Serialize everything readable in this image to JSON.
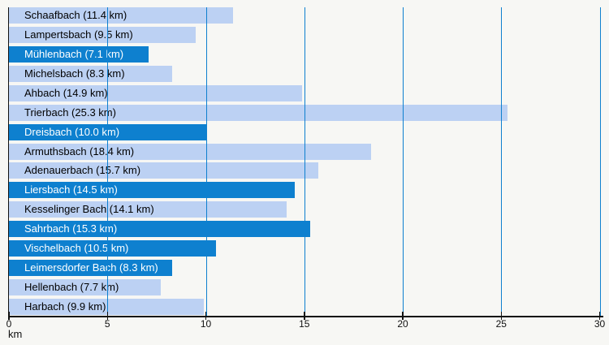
{
  "chart_data": {
    "type": "bar",
    "orientation": "horizontal",
    "title": "",
    "xlabel": "km",
    "xlim": [
      0,
      30
    ],
    "xticks": [
      0,
      5,
      10,
      15,
      20,
      25,
      30
    ],
    "grid": true,
    "legend": false,
    "bars": [
      {
        "name": "Schaafbach",
        "value": 11.4,
        "label": "Schaafbach (11.4 km)",
        "highlighted": false
      },
      {
        "name": "Lampertsbach",
        "value": 9.5,
        "label": "Lampertsbach (9.5 km)",
        "highlighted": false
      },
      {
        "name": "Mühlenbach",
        "value": 7.1,
        "label": "Mühlenbach (7.1 km)",
        "highlighted": true
      },
      {
        "name": "Michelsbach",
        "value": 8.3,
        "label": "Michelsbach (8.3 km)",
        "highlighted": false
      },
      {
        "name": "Ahbach",
        "value": 14.9,
        "label": "Ahbach (14.9 km)",
        "highlighted": false
      },
      {
        "name": "Trierbach",
        "value": 25.3,
        "label": "Trierbach (25.3 km)",
        "highlighted": false
      },
      {
        "name": "Dreisbach",
        "value": 10.0,
        "label": "Dreisbach (10.0 km)",
        "highlighted": true
      },
      {
        "name": "Armuthsbach",
        "value": 18.4,
        "label": "Armuthsbach (18.4 km)",
        "highlighted": false
      },
      {
        "name": "Adenauerbach",
        "value": 15.7,
        "label": "Adenauerbach (15.7 km)",
        "highlighted": false
      },
      {
        "name": "Liersbach",
        "value": 14.5,
        "label": "Liersbach (14.5 km)",
        "highlighted": true
      },
      {
        "name": "Kesselinger Bach",
        "value": 14.1,
        "label": "Kesselinger Bach (14.1 km)",
        "highlighted": false
      },
      {
        "name": "Sahrbach",
        "value": 15.3,
        "label": "Sahrbach (15.3 km)",
        "highlighted": true
      },
      {
        "name": "Vischelbach",
        "value": 10.5,
        "label": "Vischelbach (10.5 km)",
        "highlighted": true
      },
      {
        "name": "Leimersdorfer Bach",
        "value": 8.3,
        "label": "Leimersdorfer Bach (8.3 km)",
        "highlighted": true
      },
      {
        "name": "Hellenbach",
        "value": 7.7,
        "label": "Hellenbach (7.7 km)",
        "highlighted": false
      },
      {
        "name": "Harbach",
        "value": 9.9,
        "label": "Harbach (9.9 km)",
        "highlighted": false
      }
    ],
    "colors": {
      "background": "#f7f7f4",
      "bar_default": "#bcd1f3",
      "bar_highlight": "#0e80cf",
      "label_on_default": "#000000",
      "label_on_highlight": "#ffffff",
      "gridline": "#0e80cf",
      "axis": "#111111",
      "tick_label": "#111111"
    }
  }
}
